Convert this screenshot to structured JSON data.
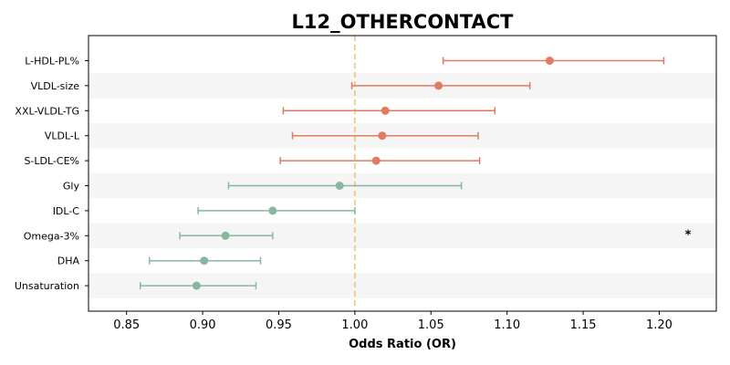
{
  "chart_data": {
    "type": "forest",
    "title": "L12_OTHERCONTACT",
    "xlabel": "Odds Ratio (OR)",
    "xlim": [
      0.825,
      1.2375
    ],
    "xticks": [
      0.85,
      0.9,
      0.95,
      1.0,
      1.05,
      1.1,
      1.15,
      1.2
    ],
    "xtick_labels": [
      "0.85",
      "0.90",
      "0.95",
      "1.00",
      "1.05",
      "1.10",
      "1.15",
      "1.20"
    ],
    "reference_line": 1.0,
    "colors": {
      "positive": "#e07b62",
      "negative": "#86b89f",
      "reference": "#f0c27a",
      "band": "#f5f5f5"
    },
    "rows": [
      {
        "label": "L-HDL-PL%",
        "or": 1.128,
        "lower": 1.058,
        "upper": 1.203,
        "annotation": ""
      },
      {
        "label": "VLDL-size",
        "or": 1.055,
        "lower": 0.998,
        "upper": 1.115,
        "annotation": ""
      },
      {
        "label": "XXL-VLDL-TG",
        "or": 1.02,
        "lower": 0.953,
        "upper": 1.092,
        "annotation": ""
      },
      {
        "label": "VLDL-L",
        "or": 1.018,
        "lower": 0.959,
        "upper": 1.081,
        "annotation": ""
      },
      {
        "label": "S-LDL-CE%",
        "or": 1.014,
        "lower": 0.951,
        "upper": 1.082,
        "annotation": ""
      },
      {
        "label": "Gly",
        "or": 0.99,
        "lower": 0.917,
        "upper": 1.07,
        "annotation": ""
      },
      {
        "label": "IDL-C",
        "or": 0.946,
        "lower": 0.897,
        "upper": 1.0,
        "annotation": ""
      },
      {
        "label": "Omega-3%",
        "or": 0.915,
        "lower": 0.885,
        "upper": 0.946,
        "annotation": "*"
      },
      {
        "label": "DHA",
        "or": 0.901,
        "lower": 0.865,
        "upper": 0.938,
        "annotation": ""
      },
      {
        "label": "Unsaturation",
        "or": 0.896,
        "lower": 0.859,
        "upper": 0.935,
        "annotation": ""
      }
    ]
  }
}
